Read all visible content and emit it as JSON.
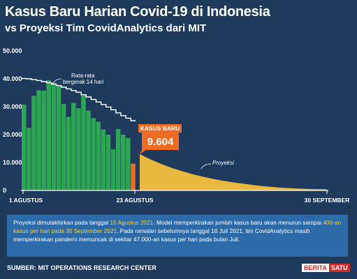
{
  "header": {
    "title": "Kasus Baru Harian Covid-19 di Indonesia",
    "subtitle": "vs Proyeksi Tim CovidAnalytics dari MIT"
  },
  "chart_data": {
    "type": "bar",
    "x_tick_labels": [
      "1 AGUSTUS",
      "23 AGUSTUS",
      "30 SEPTEMBER"
    ],
    "y_tick_labels": [
      "0",
      "10.000",
      "20.000",
      "30.000",
      "40.000",
      "50.000"
    ],
    "ylim": [
      0,
      50000
    ],
    "grid": false,
    "actual_daily_cases": [
      30738,
      22404,
      33900,
      35867,
      35764,
      39532,
      38594,
      37624,
      31002,
      26423,
      31363,
      29455,
      34021,
      28590,
      25925,
      24600,
      21882,
      19993,
      14771,
      22053,
      20002,
      18786
    ],
    "latest_value": 9604,
    "moving_average_14d": [
      40100,
      40000,
      39700,
      39400,
      39000,
      38600,
      38100,
      37600,
      37000,
      36400,
      35800,
      35200,
      34300,
      33500,
      32600,
      31700,
      30800,
      29900,
      28900,
      27800,
      26800,
      25900,
      25000
    ],
    "projection_values": [
      13000,
      11200,
      9600,
      8200,
      7000,
      5900,
      5000,
      4200,
      3500,
      2900,
      2400,
      1900,
      1500,
      1200,
      900,
      700,
      550,
      450,
      400
    ],
    "annotations": {
      "moving_average_label": [
        "Rata-rata",
        "bergerak 14 hari"
      ],
      "latest_label": "KASUS BARU",
      "latest_value_label": "9.604",
      "projection_label": "Proyeksi"
    },
    "colors": {
      "actual": "#2ea556",
      "latest": "#ef6b26",
      "projection": "#e8b93e",
      "moving_average": "#ffffff",
      "background": "#1f3a5c"
    }
  },
  "note": {
    "t1": "Proyeksi dimutakhirkan pada tanggal ",
    "h1": "15 Agustus 2021",
    "t2": ". Model memperkirakan jumlah kasus baru akan menurun sampai ",
    "h2": "400-an kasus per hari pada 30 September 2021",
    "t3": ". Pada ramalan sebelumnya tanggal 16 Juli 2021, tim CovidAnalytics masih memperkirakan pandemi memuncak di sekitar 47.000-an kasus per hari pada bulan Juli."
  },
  "footer": {
    "source": "SUMBER: MIT OPERATIONS RESEARCH CENTER",
    "logo_part1": "BERITA",
    "logo_part2": "SATU"
  }
}
